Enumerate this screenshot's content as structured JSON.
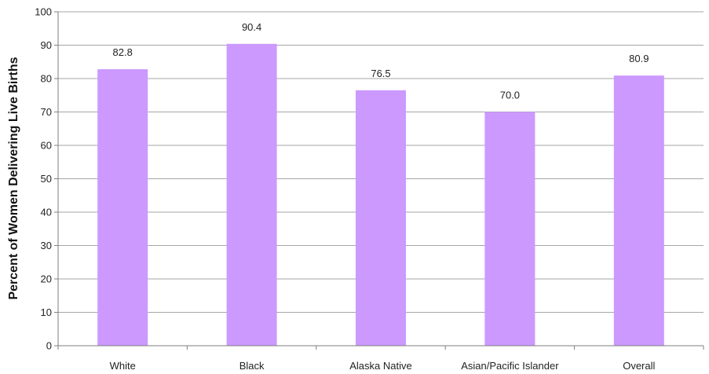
{
  "chart_data": {
    "type": "bar",
    "categories": [
      "White",
      "Black",
      "Alaska Native",
      "Asian/Pacific Islander",
      "Overall"
    ],
    "values": [
      82.8,
      90.4,
      76.5,
      70.0,
      80.9
    ],
    "value_labels": [
      "82.8",
      "90.4",
      "76.5",
      "70.0",
      "80.9"
    ],
    "title": "",
    "xlabel": "",
    "ylabel": "Percent of Women Delivering Live Births",
    "ylim": [
      0,
      100
    ],
    "yticks": [
      "0",
      "10",
      "20",
      "30",
      "40",
      "50",
      "60",
      "70",
      "80",
      "90",
      "100"
    ],
    "grid": true,
    "legend": "none",
    "colors": {
      "bar": "#cc99ff",
      "grid": "#a6a6a6",
      "axis": "#7f7f7f"
    }
  }
}
